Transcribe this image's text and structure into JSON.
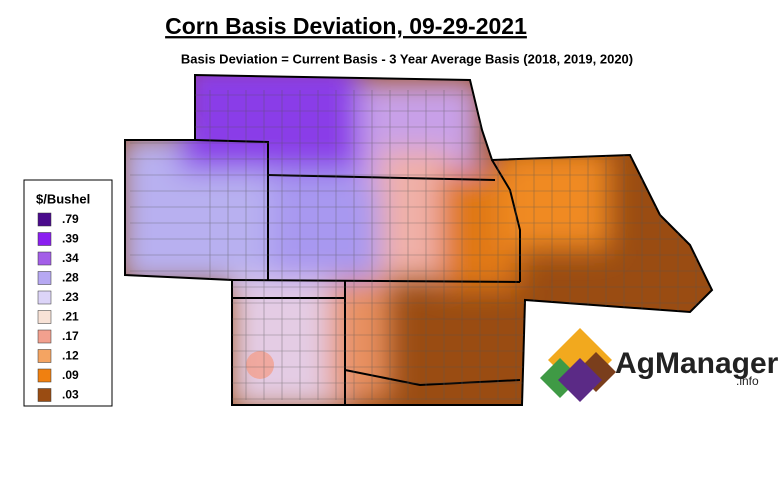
{
  "header": {
    "title": "Corn Basis Deviation, 09-29-2021",
    "subtitle": "Basis Deviation = Current Basis - 3 Year Average Basis (2018, 2019, 2020)"
  },
  "legend": {
    "title": "$/Bushel",
    "items": [
      {
        "label": ".79",
        "color": "#4a0a8c"
      },
      {
        "label": ".39",
        "color": "#8a1ef0"
      },
      {
        "label": ".34",
        "color": "#a35ee8"
      },
      {
        "label": ".28",
        "color": "#b6a8f2"
      },
      {
        "label": ".23",
        "color": "#dcd4f8"
      },
      {
        "label": ".21",
        "color": "#f8e2d6"
      },
      {
        "label": ".17",
        "color": "#f2a08e"
      },
      {
        "label": ".12",
        "color": "#f4a462"
      },
      {
        "label": ".09",
        "color": "#f08010"
      },
      {
        "label": ".03",
        "color": "#9a4c12"
      }
    ]
  },
  "logo": {
    "name": "AgManager",
    "suffix": ".info"
  }
}
